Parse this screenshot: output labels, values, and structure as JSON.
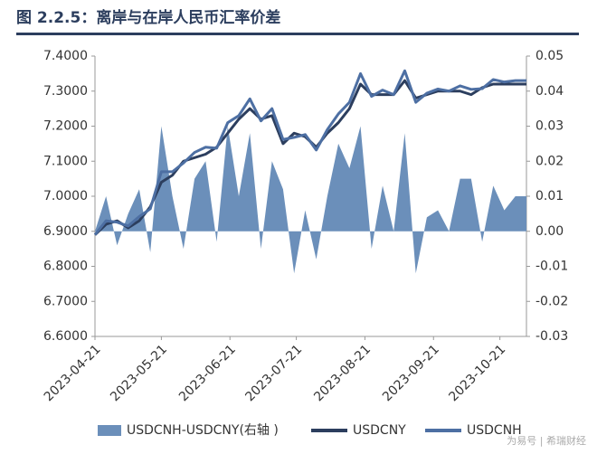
{
  "chart_data": {
    "type": "line",
    "title": "图 2.2.5：离岸与在岸人民币汇率价差",
    "watermark": "为易号 | 希瑞财经",
    "x": [
      "2023-04-21",
      "2023-04-26",
      "2023-05-01",
      "2023-05-06",
      "2023-05-11",
      "2023-05-16",
      "2023-05-21",
      "2023-05-26",
      "2023-05-31",
      "2023-06-05",
      "2023-06-10",
      "2023-06-15",
      "2023-06-20",
      "2023-06-25",
      "2023-06-30",
      "2023-07-05",
      "2023-07-10",
      "2023-07-15",
      "2023-07-20",
      "2023-07-25",
      "2023-07-30",
      "2023-08-04",
      "2023-08-09",
      "2023-08-14",
      "2023-08-19",
      "2023-08-24",
      "2023-08-29",
      "2023-09-03",
      "2023-09-08",
      "2023-09-13",
      "2023-09-18",
      "2023-09-23",
      "2023-09-28",
      "2023-10-03",
      "2023-10-08",
      "2023-10-13",
      "2023-10-18",
      "2023-10-23",
      "2023-10-28",
      "2023-11-02"
    ],
    "xlim": [
      "2023-04-21",
      "2023-11-02"
    ],
    "xticks": [
      "2023-04-21",
      "2023-05-21",
      "2023-06-21",
      "2023-07-21",
      "2023-08-21",
      "2023-09-21",
      "2023-10-21"
    ],
    "ylim": [
      6.6,
      7.4
    ],
    "yticks": [
      {
        "value": 6.6,
        "label": "6.6000"
      },
      {
        "value": 6.7,
        "label": "6.7000"
      },
      {
        "value": 6.8,
        "label": "6.8000"
      },
      {
        "value": 6.9,
        "label": "6.9000"
      },
      {
        "value": 7.0,
        "label": "7.0000"
      },
      {
        "value": 7.1,
        "label": "7.1000"
      },
      {
        "value": 7.2,
        "label": "7.2000"
      },
      {
        "value": 7.3,
        "label": "7.3000"
      },
      {
        "value": 7.4,
        "label": "7.4000"
      }
    ],
    "y2lim": [
      -0.03,
      0.05
    ],
    "y2ticks": [
      -0.03,
      -0.02,
      -0.01,
      {
        "value": 0,
        "label": "0.00"
      },
      0.01,
      0.02,
      0.03,
      0.04,
      0.05
    ],
    "series": [
      {
        "name": "USDCNH-USDCNY(右轴 )",
        "kind": "area",
        "axis": "y2",
        "color": "#6b8fba",
        "values": [
          0.0,
          0.01,
          -0.004,
          0.005,
          0.012,
          -0.006,
          0.03,
          0.01,
          -0.005,
          0.015,
          0.02,
          -0.003,
          0.03,
          0.01,
          0.028,
          -0.005,
          0.02,
          0.012,
          -0.012,
          0.006,
          -0.008,
          0.01,
          0.025,
          0.018,
          0.03,
          -0.005,
          0.013,
          0.0,
          0.028,
          -0.012,
          0.004,
          0.006,
          0.0,
          0.015,
          0.015,
          -0.003,
          0.013,
          0.006,
          0.01,
          0.01
        ]
      },
      {
        "name": "USDCNY",
        "color": "#2c3e5e",
        "values": [
          6.89,
          6.92,
          6.93,
          6.91,
          6.93,
          6.97,
          7.04,
          7.06,
          7.1,
          7.11,
          7.12,
          7.14,
          7.18,
          7.22,
          7.25,
          7.22,
          7.23,
          7.15,
          7.18,
          7.17,
          7.14,
          7.18,
          7.21,
          7.25,
          7.32,
          7.29,
          7.29,
          7.29,
          7.33,
          7.28,
          7.29,
          7.3,
          7.3,
          7.3,
          7.29,
          7.31,
          7.32,
          7.32,
          7.32,
          7.32
        ]
      },
      {
        "name": "USDCNH",
        "color": "#4d6fa3",
        "values": [
          6.89,
          6.93,
          6.926,
          6.915,
          6.942,
          6.964,
          7.07,
          7.07,
          7.095,
          7.125,
          7.14,
          7.137,
          7.21,
          7.23,
          7.278,
          7.215,
          7.25,
          7.162,
          7.168,
          7.176,
          7.132,
          7.19,
          7.235,
          7.268,
          7.35,
          7.285,
          7.303,
          7.29,
          7.358,
          7.268,
          7.294,
          7.306,
          7.3,
          7.315,
          7.305,
          7.307,
          7.333,
          7.326,
          7.33,
          7.33
        ]
      }
    ]
  }
}
